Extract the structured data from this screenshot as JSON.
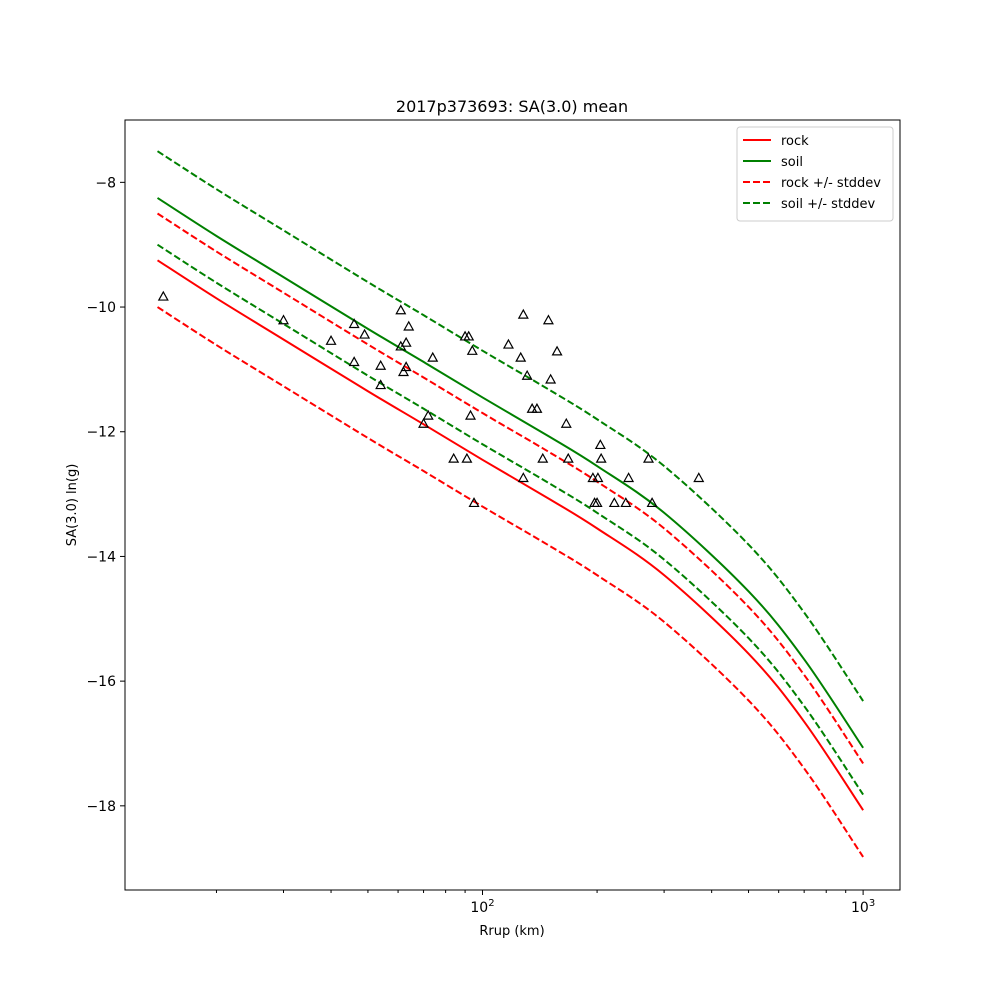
{
  "chart_data": {
    "type": "line",
    "title": "2017p373693: SA(3.0) mean",
    "xlabel": "Rrup (km)",
    "ylabel": "SA(3.0) ln(g)",
    "xscale": "log",
    "xlim": [
      11.5,
      1250
    ],
    "ylim": [
      -19.35,
      -7.0
    ],
    "x_ticks": [
      {
        "value": 100,
        "base": "10",
        "exp": "2"
      },
      {
        "value": 1000,
        "base": "10",
        "exp": "3"
      }
    ],
    "y_ticks": [
      -8,
      -10,
      -12,
      -14,
      -16,
      -18
    ],
    "y_tick_labels": [
      "−8",
      "−10",
      "−12",
      "−14",
      "−16",
      "−18"
    ],
    "grid": false,
    "legend": "top-right",
    "legend_entries": [
      {
        "label": "rock",
        "color": "#ff0000",
        "dash": false
      },
      {
        "label": "soil",
        "color": "#008000",
        "dash": false
      },
      {
        "label": "rock +/- stddev",
        "color": "#ff0000",
        "dash": true
      },
      {
        "label": "soil +/- stddev",
        "color": "#008000",
        "dash": true
      }
    ],
    "x": [
      14,
      20,
      30,
      50,
      70,
      100,
      150,
      200,
      300,
      500,
      700,
      1000
    ],
    "series": [
      {
        "id": "rock",
        "color": "#ff0000",
        "dash": false,
        "values": [
          -9.25,
          -9.86,
          -10.52,
          -11.35,
          -11.88,
          -12.45,
          -13.08,
          -13.55,
          -14.3,
          -15.56,
          -16.65,
          -18.07
        ]
      },
      {
        "id": "soil",
        "color": "#008000",
        "dash": false,
        "values": [
          -8.25,
          -8.86,
          -9.52,
          -10.35,
          -10.88,
          -11.45,
          -12.08,
          -12.55,
          -13.3,
          -14.56,
          -15.65,
          -17.07
        ]
      },
      {
        "id": "rock_plus",
        "color": "#ff0000",
        "dash": true,
        "values": [
          -8.5,
          -9.11,
          -9.77,
          -10.6,
          -11.13,
          -11.7,
          -12.33,
          -12.8,
          -13.55,
          -14.81,
          -15.9,
          -17.32
        ]
      },
      {
        "id": "rock_minus",
        "color": "#ff0000",
        "dash": true,
        "values": [
          -10.0,
          -10.61,
          -11.27,
          -12.1,
          -12.63,
          -13.2,
          -13.83,
          -14.3,
          -15.05,
          -16.31,
          -17.4,
          -18.82
        ]
      },
      {
        "id": "soil_plus",
        "color": "#008000",
        "dash": true,
        "values": [
          -7.5,
          -8.11,
          -8.77,
          -9.6,
          -10.13,
          -10.7,
          -11.33,
          -11.8,
          -12.55,
          -13.81,
          -14.9,
          -16.32
        ]
      },
      {
        "id": "soil_minus",
        "color": "#008000",
        "dash": true,
        "values": [
          -9.0,
          -9.61,
          -10.27,
          -11.1,
          -11.63,
          -12.2,
          -12.83,
          -13.3,
          -14.05,
          -15.31,
          -16.4,
          -17.82
        ]
      }
    ],
    "observations": {
      "marker": "triangle",
      "color": "#000000",
      "points": [
        [
          14.5,
          -9.83
        ],
        [
          30,
          -10.21
        ],
        [
          40,
          -10.54
        ],
        [
          46,
          -10.27
        ],
        [
          46,
          -10.88
        ],
        [
          49,
          -10.44
        ],
        [
          54,
          -11.25
        ],
        [
          54,
          -10.94
        ],
        [
          61,
          -10.05
        ],
        [
          61,
          -10.63
        ],
        [
          62,
          -11.04
        ],
        [
          63,
          -10.96
        ],
        [
          63,
          -10.57
        ],
        [
          64,
          -10.31
        ],
        [
          70,
          -11.87
        ],
        [
          72,
          -11.74
        ],
        [
          74,
          -10.81
        ],
        [
          84,
          -12.43
        ],
        [
          90,
          -10.47
        ],
        [
          91,
          -12.43
        ],
        [
          92,
          -10.47
        ],
        [
          93,
          -11.74
        ],
        [
          94,
          -10.7
        ],
        [
          95,
          -13.14
        ],
        [
          117,
          -10.6
        ],
        [
          126,
          -10.81
        ],
        [
          128,
          -10.12
        ],
        [
          128,
          -12.74
        ],
        [
          131,
          -11.1
        ],
        [
          135,
          -11.63
        ],
        [
          139,
          -11.63
        ],
        [
          144,
          -12.43
        ],
        [
          149,
          -10.21
        ],
        [
          151,
          -11.16
        ],
        [
          157,
          -10.71
        ],
        [
          166,
          -11.87
        ],
        [
          168,
          -12.43
        ],
        [
          195,
          -12.74
        ],
        [
          197,
          -13.14
        ],
        [
          200,
          -13.14
        ],
        [
          201,
          -12.74
        ],
        [
          204,
          -12.21
        ],
        [
          205,
          -12.43
        ],
        [
          222,
          -13.14
        ],
        [
          238,
          -13.14
        ],
        [
          242,
          -12.74
        ],
        [
          273,
          -12.43
        ],
        [
          279,
          -13.14
        ],
        [
          370,
          -12.74
        ]
      ]
    }
  }
}
